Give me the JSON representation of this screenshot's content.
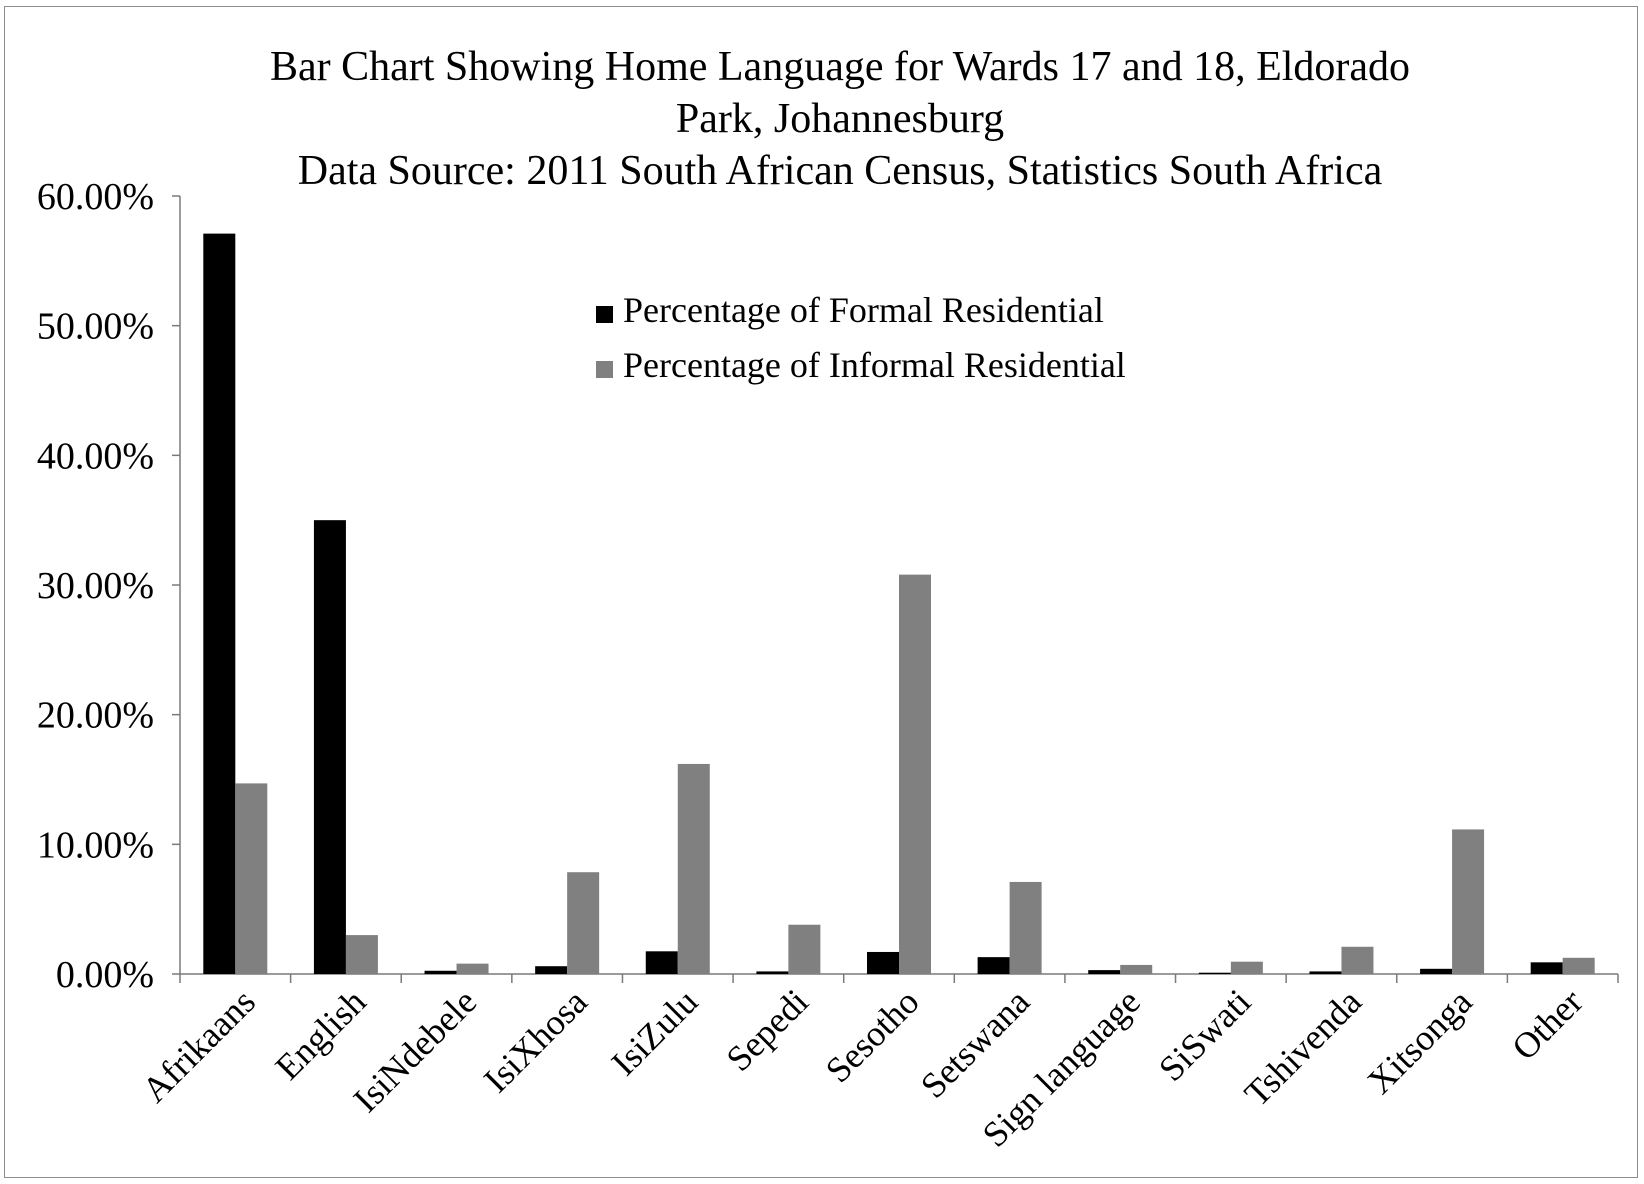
{
  "chart_data": {
    "type": "bar",
    "title_lines": [
      "Bar Chart Showing Home Language for Wards 17 and 18, Eldorado",
      "Park, Johannesburg",
      "Data Source: 2011 South African Census, Statistics South Africa"
    ],
    "categories": [
      "Afrikaans",
      "English",
      "IsiNdebele",
      "IsiXhosa",
      "IsiZulu",
      "Sepedi",
      "Sesotho",
      "Setswana",
      "Sign language",
      "SiSwati",
      "Tshivenda",
      "Xitsonga",
      "Other"
    ],
    "series": [
      {
        "name": "Percentage of Formal Residential",
        "color": "#000000",
        "values": [
          57.1,
          35.0,
          0.25,
          0.6,
          1.75,
          0.2,
          1.7,
          1.3,
          0.3,
          0.1,
          0.2,
          0.4,
          0.9
        ]
      },
      {
        "name": "Percentage of Informal Residential",
        "color": "#808080",
        "values": [
          14.7,
          3.0,
          0.8,
          7.85,
          16.2,
          3.8,
          30.8,
          7.1,
          0.7,
          0.95,
          2.1,
          11.15,
          1.25
        ]
      }
    ],
    "ylim": [
      0,
      60
    ],
    "yticks": [
      "0.00%",
      "10.00%",
      "20.00%",
      "30.00%",
      "40.00%",
      "50.00%",
      "60.00%"
    ],
    "xlabel": "",
    "ylabel": "",
    "legend_position": "upper-center",
    "grid": false
  }
}
